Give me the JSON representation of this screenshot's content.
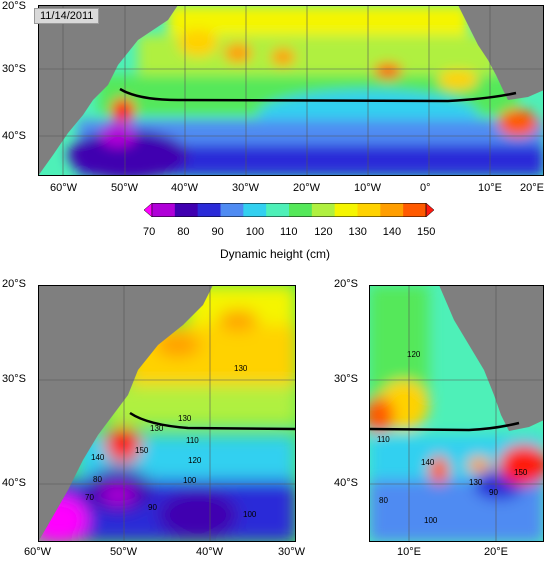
{
  "date": "11/14/2011",
  "colorbar": {
    "title": "Dynamic height (cm)",
    "ticks": [
      "70",
      "80",
      "90",
      "100",
      "110",
      "120",
      "130",
      "140",
      "150"
    ],
    "colors": [
      "#ff00ff",
      "#b000d8",
      "#4000b0",
      "#2b2bd8",
      "#4f8bf2",
      "#33d0f0",
      "#4ef0b8",
      "#55e85a",
      "#b0f040",
      "#f5f500",
      "#ffd200",
      "#ff9e00",
      "#ff5a00",
      "#ff1a10"
    ]
  },
  "land_color": "#7f7f7f",
  "front_color": "#000000",
  "panels": {
    "top": {
      "lat_labels": [
        "20°S",
        "30°S",
        "40°S"
      ],
      "lon_labels": [
        "60°W",
        "50°W",
        "40°W",
        "30°W",
        "20°W",
        "10°W",
        "0°",
        "10°E",
        "20°E"
      ]
    },
    "bottom_left": {
      "lat_labels": [
        "20°S",
        "30°S",
        "40°S"
      ],
      "lon_labels": [
        "60°W",
        "50°W",
        "40°W",
        "30°W"
      ],
      "contour_labels": [
        "70",
        "80",
        "90",
        "100",
        "100",
        "110",
        "120",
        "130",
        "130",
        "130",
        "140",
        "150"
      ]
    },
    "bottom_right": {
      "lat_labels": [
        "20°S",
        "30°S",
        "40°S"
      ],
      "lon_labels": [
        "10°E",
        "20°E"
      ],
      "contour_labels": [
        "80",
        "90",
        "100",
        "110",
        "120",
        "130",
        "140",
        "150"
      ]
    }
  }
}
